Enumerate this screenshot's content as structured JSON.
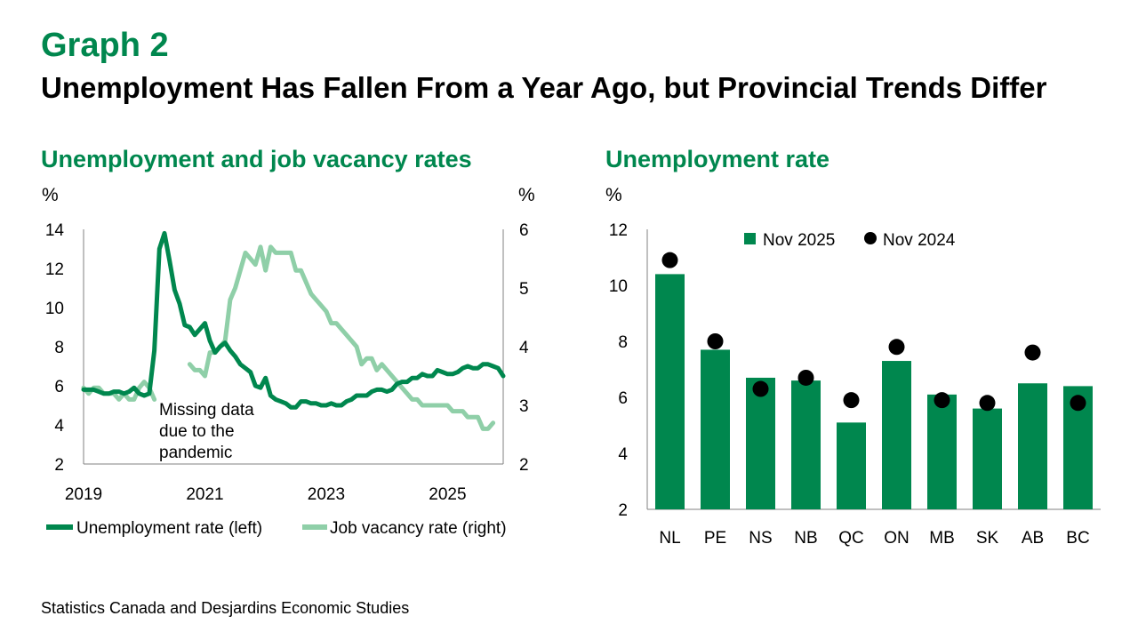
{
  "header": {
    "graph_label": "Graph 2",
    "title": "Unemployment Has Fallen From a Year Ago, but Provincial Trends Differ"
  },
  "source": "Statistics Canada and Desjardins Economic Studies",
  "colors": {
    "dark_green": "#00874e",
    "light_green": "#8fcfa8",
    "black": "#000000"
  },
  "chart_data": [
    {
      "type": "line",
      "title": "Unemployment and job vacancy rates",
      "ylabel_left": "%",
      "ylabel_right": "%",
      "ylim_left": [
        2,
        14
      ],
      "ylim_right": [
        2,
        6
      ],
      "yticks_left": [
        "2",
        "4",
        "6",
        "8",
        "10",
        "12",
        "14"
      ],
      "yticks_right": [
        "2",
        "3",
        "4",
        "5",
        "6"
      ],
      "xlim": [
        2019.0,
        2025.917
      ],
      "xticks": [
        "2019",
        "2021",
        "2023",
        "2025"
      ],
      "annotation": "Missing data due to the pandemic",
      "legend_position": "bottom",
      "series": [
        {
          "name": "Unemployment rate (left)",
          "axis": "left",
          "color": "#00874e",
          "points": [
            [
              2019.0,
              5.8
            ],
            [
              2019.083,
              5.8
            ],
            [
              2019.167,
              5.8
            ],
            [
              2019.25,
              5.7
            ],
            [
              2019.333,
              5.6
            ],
            [
              2019.417,
              5.6
            ],
            [
              2019.5,
              5.7
            ],
            [
              2019.583,
              5.7
            ],
            [
              2019.667,
              5.6
            ],
            [
              2019.75,
              5.7
            ],
            [
              2019.833,
              5.9
            ],
            [
              2019.917,
              5.6
            ],
            [
              2020.0,
              5.5
            ],
            [
              2020.083,
              5.6
            ],
            [
              2020.167,
              7.8
            ],
            [
              2020.25,
              13.0
            ],
            [
              2020.333,
              13.8
            ],
            [
              2020.417,
              12.4
            ],
            [
              2020.5,
              10.9
            ],
            [
              2020.583,
              10.2
            ],
            [
              2020.667,
              9.1
            ],
            [
              2020.75,
              9.0
            ],
            [
              2020.833,
              8.6
            ],
            [
              2020.917,
              8.9
            ],
            [
              2021.0,
              9.2
            ],
            [
              2021.083,
              8.3
            ],
            [
              2021.167,
              7.7
            ],
            [
              2021.25,
              8.0
            ],
            [
              2021.333,
              8.2
            ],
            [
              2021.417,
              7.8
            ],
            [
              2021.5,
              7.5
            ],
            [
              2021.583,
              7.1
            ],
            [
              2021.667,
              6.9
            ],
            [
              2021.75,
              6.7
            ],
            [
              2021.833,
              6.0
            ],
            [
              2021.917,
              5.9
            ],
            [
              2022.0,
              6.4
            ],
            [
              2022.083,
              5.5
            ],
            [
              2022.167,
              5.3
            ],
            [
              2022.25,
              5.2
            ],
            [
              2022.333,
              5.1
            ],
            [
              2022.417,
              4.9
            ],
            [
              2022.5,
              4.9
            ],
            [
              2022.583,
              5.2
            ],
            [
              2022.667,
              5.2
            ],
            [
              2022.75,
              5.1
            ],
            [
              2022.833,
              5.1
            ],
            [
              2022.917,
              5.0
            ],
            [
              2023.0,
              5.0
            ],
            [
              2023.083,
              5.1
            ],
            [
              2023.167,
              5.0
            ],
            [
              2023.25,
              5.0
            ],
            [
              2023.333,
              5.2
            ],
            [
              2023.417,
              5.3
            ],
            [
              2023.5,
              5.5
            ],
            [
              2023.583,
              5.5
            ],
            [
              2023.667,
              5.5
            ],
            [
              2023.75,
              5.7
            ],
            [
              2023.833,
              5.8
            ],
            [
              2023.917,
              5.8
            ],
            [
              2024.0,
              5.7
            ],
            [
              2024.083,
              5.8
            ],
            [
              2024.167,
              6.1
            ],
            [
              2024.25,
              6.2
            ],
            [
              2024.333,
              6.2
            ],
            [
              2024.417,
              6.4
            ],
            [
              2024.5,
              6.4
            ],
            [
              2024.583,
              6.6
            ],
            [
              2024.667,
              6.5
            ],
            [
              2024.75,
              6.5
            ],
            [
              2024.833,
              6.8
            ],
            [
              2024.917,
              6.7
            ],
            [
              2025.0,
              6.6
            ],
            [
              2025.083,
              6.6
            ],
            [
              2025.167,
              6.7
            ],
            [
              2025.25,
              6.9
            ],
            [
              2025.333,
              7.0
            ],
            [
              2025.417,
              6.9
            ],
            [
              2025.5,
              6.9
            ],
            [
              2025.583,
              7.1
            ],
            [
              2025.667,
              7.1
            ],
            [
              2025.75,
              7.0
            ],
            [
              2025.833,
              6.9
            ],
            [
              2025.917,
              6.5
            ]
          ]
        },
        {
          "name": "Job vacancy rate (right)",
          "axis": "right",
          "color": "#8fcfa8",
          "segments": [
            [
              [
                2019.0,
                3.3
              ],
              [
                2019.083,
                3.2
              ],
              [
                2019.167,
                3.3
              ],
              [
                2019.25,
                3.3
              ],
              [
                2019.333,
                3.2
              ],
              [
                2019.417,
                3.2
              ],
              [
                2019.5,
                3.2
              ],
              [
                2019.583,
                3.1
              ],
              [
                2019.667,
                3.2
              ],
              [
                2019.75,
                3.1
              ],
              [
                2019.833,
                3.1
              ],
              [
                2019.917,
                3.3
              ],
              [
                2020.0,
                3.4
              ],
              [
                2020.083,
                3.3
              ],
              [
                2020.167,
                3.1
              ]
            ],
            [
              [
                2020.75,
                3.7
              ],
              [
                2020.833,
                3.6
              ],
              [
                2020.917,
                3.6
              ],
              [
                2021.0,
                3.5
              ],
              [
                2021.083,
                3.9
              ],
              [
                2021.167,
                3.9
              ],
              [
                2021.25,
                4.0
              ],
              [
                2021.333,
                4.1
              ],
              [
                2021.417,
                4.8
              ],
              [
                2021.5,
                5.0
              ],
              [
                2021.583,
                5.3
              ],
              [
                2021.667,
                5.6
              ],
              [
                2021.75,
                5.5
              ],
              [
                2021.833,
                5.4
              ],
              [
                2021.917,
                5.7
              ],
              [
                2022.0,
                5.3
              ],
              [
                2022.083,
                5.7
              ],
              [
                2022.167,
                5.6
              ],
              [
                2022.25,
                5.6
              ],
              [
                2022.333,
                5.6
              ],
              [
                2022.417,
                5.6
              ],
              [
                2022.5,
                5.3
              ],
              [
                2022.583,
                5.3
              ],
              [
                2022.667,
                5.1
              ],
              [
                2022.75,
                4.9
              ],
              [
                2022.833,
                4.8
              ],
              [
                2022.917,
                4.7
              ],
              [
                2023.0,
                4.6
              ],
              [
                2023.083,
                4.4
              ],
              [
                2023.167,
                4.4
              ],
              [
                2023.25,
                4.3
              ],
              [
                2023.333,
                4.2
              ],
              [
                2023.417,
                4.1
              ],
              [
                2023.5,
                4.0
              ],
              [
                2023.583,
                3.7
              ],
              [
                2023.667,
                3.8
              ],
              [
                2023.75,
                3.8
              ],
              [
                2023.833,
                3.6
              ],
              [
                2023.917,
                3.7
              ],
              [
                2024.0,
                3.6
              ],
              [
                2024.083,
                3.5
              ],
              [
                2024.167,
                3.4
              ],
              [
                2024.25,
                3.3
              ],
              [
                2024.333,
                3.2
              ],
              [
                2024.417,
                3.1
              ],
              [
                2024.5,
                3.1
              ],
              [
                2024.583,
                3.0
              ],
              [
                2024.667,
                3.0
              ],
              [
                2024.75,
                3.0
              ],
              [
                2024.833,
                3.0
              ],
              [
                2024.917,
                3.0
              ],
              [
                2025.0,
                3.0
              ],
              [
                2025.083,
                2.9
              ],
              [
                2025.167,
                2.9
              ],
              [
                2025.25,
                2.9
              ],
              [
                2025.333,
                2.8
              ],
              [
                2025.417,
                2.8
              ],
              [
                2025.5,
                2.8
              ],
              [
                2025.583,
                2.6
              ],
              [
                2025.667,
                2.6
              ],
              [
                2025.75,
                2.7
              ]
            ]
          ]
        }
      ]
    },
    {
      "type": "bar",
      "title": "Unemployment rate",
      "ylabel": "%",
      "ylim": [
        2,
        12
      ],
      "yticks": [
        "2",
        "4",
        "6",
        "8",
        "10",
        "12"
      ],
      "categories": [
        "NL",
        "PE",
        "NS",
        "NB",
        "QC",
        "ON",
        "MB",
        "SK",
        "AB",
        "BC"
      ],
      "legend_position": "top",
      "series": [
        {
          "name": "Nov 2025",
          "kind": "bar",
          "color": "#00874e",
          "values": [
            10.4,
            7.7,
            6.7,
            6.6,
            5.1,
            7.3,
            6.1,
            5.6,
            6.5,
            6.4
          ]
        },
        {
          "name": "Nov 2024",
          "kind": "marker",
          "color": "#000000",
          "values": [
            10.9,
            8.0,
            6.3,
            6.7,
            5.9,
            7.8,
            5.9,
            5.8,
            7.6,
            5.8
          ]
        }
      ]
    }
  ]
}
